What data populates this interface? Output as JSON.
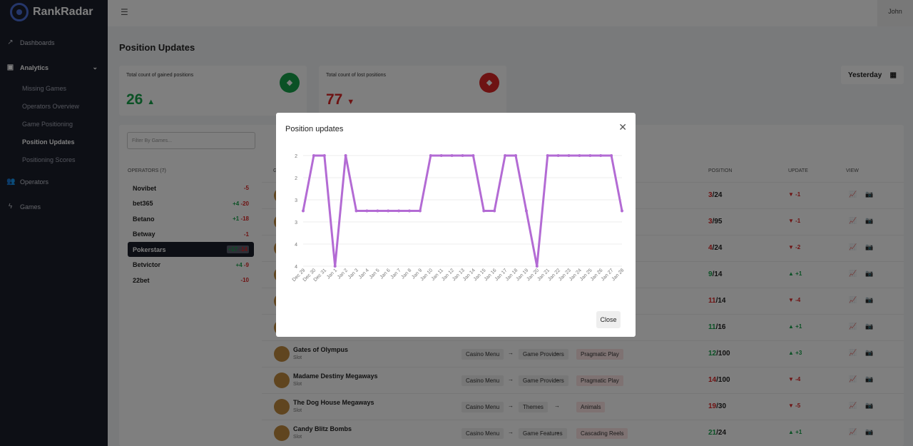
{
  "app": {
    "name": "RankRadar",
    "user": "John"
  },
  "sidebar": {
    "items": [
      {
        "label": "Dashboards",
        "icon": "trend-icon"
      },
      {
        "label": "Analytics",
        "icon": "analytics-icon"
      }
    ],
    "sub_items": [
      "Missing Games",
      "Operators Overview",
      "Game Positioning",
      "Position Updates",
      "Positioning Scores"
    ],
    "bottom_items": [
      {
        "label": "Operators",
        "icon": "users-icon"
      },
      {
        "label": "Games",
        "icon": "bolt-icon"
      }
    ]
  },
  "page": {
    "title": "Position Updates"
  },
  "stats": {
    "gained": {
      "label": "Total count of gained positions",
      "value": "26",
      "trend": "▲",
      "color": "#16a34a"
    },
    "lost": {
      "label": "Total count of lost positions",
      "value": "77",
      "trend": "▼",
      "color": "#dc2626"
    }
  },
  "date_filter": {
    "label": "Yesterday"
  },
  "filter": {
    "placeholder": "Filter By Games..."
  },
  "operators": {
    "header": "OPERATORS (7)",
    "items": [
      {
        "name": "Novibet",
        "up": "",
        "down": "-5"
      },
      {
        "name": "bet365",
        "up": "+4",
        "down": "-20"
      },
      {
        "name": "Betano",
        "up": "+1",
        "down": "-18"
      },
      {
        "name": "Betway",
        "up": "",
        "down": "-1"
      },
      {
        "name": "Pokerstars",
        "up": "+17",
        "down": "-14"
      },
      {
        "name": "Betvictor",
        "up": "+4",
        "down": "-9"
      },
      {
        "name": "22bet",
        "up": "",
        "down": "-10"
      }
    ]
  },
  "table": {
    "headers": {
      "games": "G",
      "position": "POSITION",
      "update": "UPDATE",
      "view": "VIEW"
    },
    "rows": [
      {
        "name": "",
        "type": "",
        "path": [],
        "pos": "3",
        "total": "/24",
        "pos_color": "#dc2626",
        "update": "▼ -1",
        "upd_color": "#dc2626"
      },
      {
        "name": "",
        "type": "",
        "path": [],
        "pos": "3",
        "total": "/95",
        "pos_color": "#dc2626",
        "update": "▼ -1",
        "upd_color": "#dc2626"
      },
      {
        "name": "",
        "type": "",
        "path": [],
        "pos": "4",
        "total": "/24",
        "pos_color": "#dc2626",
        "update": "▼ -2",
        "upd_color": "#dc2626"
      },
      {
        "name": "",
        "type": "",
        "path": [],
        "pos": "9",
        "total": "/14",
        "pos_color": "#16a34a",
        "update": "▲ +1",
        "upd_color": "#16a34a"
      },
      {
        "name": "",
        "type": "",
        "path": [],
        "pos": "11",
        "total": "/14",
        "pos_color": "#dc2626",
        "update": "▼ -4",
        "upd_color": "#dc2626"
      },
      {
        "name": "",
        "type": "",
        "path": [],
        "pos": "11",
        "total": "/16",
        "pos_color": "#16a34a",
        "update": "▲ +1",
        "upd_color": "#16a34a"
      },
      {
        "name": "Gates of Olympus",
        "type": "Slot",
        "path": [
          "Casino Menu",
          "Game Providers",
          "Pragmatic Play"
        ],
        "pos": "12",
        "total": "/100",
        "pos_color": "#16a34a",
        "update": "▲ +3",
        "upd_color": "#16a34a"
      },
      {
        "name": "Madame Destiny Megaways",
        "type": "Slot",
        "path": [
          "Casino Menu",
          "Game Providers",
          "Pragmatic Play"
        ],
        "pos": "14",
        "total": "/100",
        "pos_color": "#dc2626",
        "update": "▼ -4",
        "upd_color": "#dc2626"
      },
      {
        "name": "The Dog House Megaways",
        "type": "Slot",
        "path": [
          "Casino Menu",
          "Themes",
          "Animals"
        ],
        "pos": "19",
        "total": "/30",
        "pos_color": "#dc2626",
        "update": "▼ -5",
        "upd_color": "#dc2626"
      },
      {
        "name": "Candy Blitz Bombs",
        "type": "Slot",
        "path": [
          "Casino Menu",
          "Game Features",
          "Cascading Reels"
        ],
        "pos": "21",
        "total": "/24",
        "pos_color": "#16a34a",
        "update": "▲ +1",
        "upd_color": "#16a34a"
      }
    ]
  },
  "modal": {
    "title": "Position updates",
    "close_label": "Close"
  },
  "chart_data": {
    "type": "line",
    "title": "",
    "xlabel": "",
    "ylabel": "",
    "color": "#b36bd4",
    "categories": [
      "Dec 29",
      "Dec 30",
      "Dec 31",
      "Jan 1",
      "Jan 2",
      "Jan 3",
      "Jan 4",
      "Jan 5",
      "Jan 6",
      "Jan 7",
      "Jan 8",
      "Jan 9",
      "Jan 10",
      "Jan 11",
      "Jan 12",
      "Jan 13",
      "Jan 14",
      "Jan 15",
      "Jan 16",
      "Jan 17",
      "Jan 18",
      "Jan 19",
      "Jan 20",
      "Jan 21",
      "Jan 22",
      "Jan 23",
      "Jan 24",
      "Jan 25",
      "Jan 26",
      "Jan 27",
      "Jan 28"
    ],
    "values": [
      3,
      2,
      2,
      4,
      2,
      3,
      3,
      3,
      3,
      3,
      3,
      3,
      2,
      2,
      2,
      2,
      2,
      3,
      3,
      2,
      2,
      3,
      4,
      2,
      2,
      2,
      2,
      2,
      2,
      2,
      3
    ],
    "ylim": [
      2,
      4
    ],
    "ytick_labels": [
      "2",
      "2",
      "3",
      "3",
      "4",
      "4"
    ],
    "reversed": true
  }
}
